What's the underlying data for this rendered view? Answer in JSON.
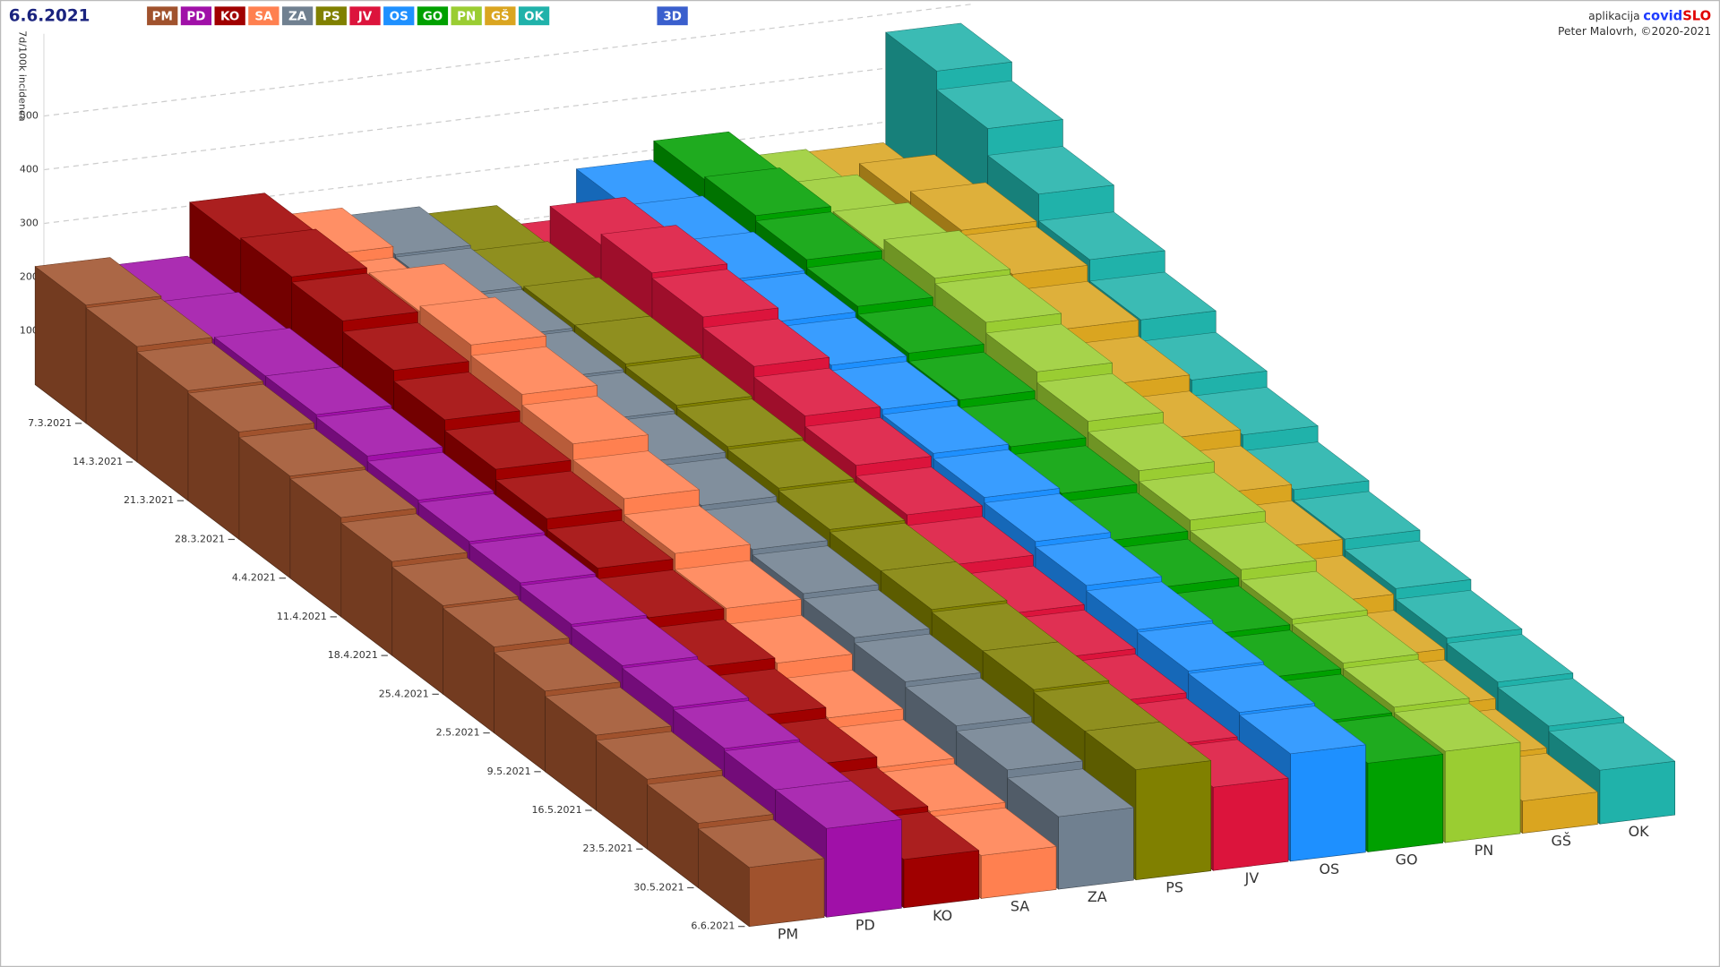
{
  "chart_data": {
    "type": "bar3d",
    "title": "6.6.2021",
    "ylabel": "7d/100k incidenca",
    "mode_button": "3D",
    "credit": {
      "prefix": "aplikacija",
      "app_a": "covid",
      "app_b": "SLO",
      "author": "Peter Malovrh, ©2020-2021"
    },
    "categories": [
      "7.3.2021",
      "14.3.2021",
      "21.3.2021",
      "28.3.2021",
      "4.4.2021",
      "11.4.2021",
      "18.4.2021",
      "25.4.2021",
      "2.5.2021",
      "9.5.2021",
      "16.5.2021",
      "23.5.2021",
      "30.5.2021",
      "6.6.2021"
    ],
    "ylim": [
      0,
      600
    ],
    "yticks": [
      100,
      200,
      300,
      400,
      500
    ],
    "grid": true,
    "series": [
      {
        "name": "PM",
        "color": "#a0522d",
        "values": [
          220,
          215,
          205,
          200,
          190,
          185,
          175,
          165,
          160,
          150,
          140,
          130,
          120,
          110
        ]
      },
      {
        "name": "PD",
        "color": "#a010a8",
        "values": [
          205,
          210,
          215,
          215,
          210,
          200,
          195,
          190,
          185,
          180,
          175,
          170,
          165,
          165
        ]
      },
      {
        "name": "KO",
        "color": "#a00000",
        "values": [
          305,
          310,
          300,
          280,
          260,
          240,
          220,
          200,
          180,
          160,
          140,
          120,
          100,
          90
        ]
      },
      {
        "name": "SA",
        "color": "#ff8050",
        "values": [
          260,
          240,
          300,
          310,
          290,
          270,
          240,
          210,
          180,
          150,
          120,
          100,
          90,
          80
        ]
      },
      {
        "name": "ZA",
        "color": "#708090",
        "values": [
          245,
          240,
          235,
          230,
          225,
          220,
          210,
          200,
          190,
          180,
          170,
          160,
          150,
          135
        ]
      },
      {
        "name": "PS",
        "color": "#808000",
        "values": [
          230,
          235,
          240,
          240,
          235,
          230,
          225,
          220,
          215,
          215,
          210,
          210,
          205,
          205
        ]
      },
      {
        "name": "JV",
        "color": "#dc143c",
        "values": [
          190,
          300,
          320,
          310,
          290,
          270,
          250,
          230,
          210,
          190,
          180,
          170,
          160,
          155
        ]
      },
      {
        "name": "OS",
        "color": "#1e90ff",
        "values": [
          280,
          285,
          290,
          285,
          275,
          265,
          255,
          245,
          235,
          225,
          215,
          210,
          205,
          200
        ]
      },
      {
        "name": "GO",
        "color": "#00a000",
        "values": [
          315,
          320,
          310,
          295,
          280,
          265,
          250,
          235,
          220,
          205,
          190,
          180,
          170,
          165
        ]
      },
      {
        "name": "PN",
        "color": "#9acd32",
        "values": [
          265,
          290,
          310,
          330,
          320,
          300,
          280,
          260,
          240,
          220,
          200,
          190,
          180,
          170
        ]
      },
      {
        "name": "GŠ",
        "color": "#daa520",
        "values": [
          260,
          310,
          330,
          320,
          290,
          260,
          230,
          200,
          170,
          140,
          110,
          90,
          70,
          60
        ]
      },
      {
        "name": "OK",
        "color": "#20b2aa",
        "values": [
          465,
          430,
          380,
          330,
          290,
          250,
          220,
          190,
          170,
          150,
          130,
          120,
          110,
          100
        ]
      }
    ]
  }
}
